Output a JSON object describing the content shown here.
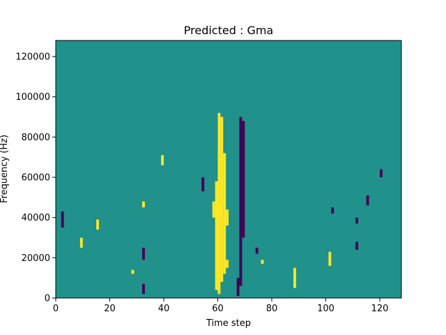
{
  "chart_data": {
    "type": "heatmap",
    "title": "Predicted : Gma",
    "xlabel": "Time step",
    "ylabel": "Frequency (Hz)",
    "xlim": [
      0,
      128
    ],
    "ylim": [
      0,
      128000
    ],
    "xticks": [
      0,
      20,
      40,
      60,
      80,
      100,
      120
    ],
    "yticks": [
      0,
      20000,
      40000,
      60000,
      80000,
      100000,
      120000
    ],
    "grid": false,
    "colormap": {
      "background": "#21918c",
      "positive": "#fde725",
      "negative": "#440154",
      "frame": "#000000"
    },
    "bin_width_x": 1,
    "bin_height_hz": 1000,
    "cells": [
      {
        "x": 60,
        "y0": 2000,
        "y1": 92000,
        "v": 1
      },
      {
        "x": 61,
        "y0": 8000,
        "y1": 90000,
        "v": 1
      },
      {
        "x": 62,
        "y0": 12000,
        "y1": 72000,
        "v": 1
      },
      {
        "x": 68,
        "y0": 6000,
        "y1": 90000,
        "v": -1
      },
      {
        "x": 69,
        "y0": 30000,
        "y1": 88000,
        "v": -1
      },
      {
        "x": 59,
        "y0": 4000,
        "y1": 58000,
        "v": 1
      },
      {
        "x": 88,
        "y0": 5000,
        "y1": 15000,
        "v": 1
      },
      {
        "x": 9,
        "y0": 25000,
        "y1": 30000,
        "v": 1
      },
      {
        "x": 2,
        "y0": 35000,
        "y1": 43000,
        "v": -1
      },
      {
        "x": 63,
        "y0": 36000,
        "y1": 44000,
        "v": 1
      },
      {
        "x": 67,
        "y0": 1000,
        "y1": 10000,
        "v": -1
      },
      {
        "x": 63,
        "y0": 15000,
        "y1": 19000,
        "v": 1
      },
      {
        "x": 60,
        "y0": 40000,
        "y1": 46000,
        "v": 1
      },
      {
        "x": 15,
        "y0": 34000,
        "y1": 39000,
        "v": 1
      },
      {
        "x": 32,
        "y0": 45000,
        "y1": 48000,
        "v": 1
      },
      {
        "x": 54,
        "y0": 53000,
        "y1": 60000,
        "v": -1
      },
      {
        "x": 39,
        "y0": 66000,
        "y1": 71000,
        "v": 1
      },
      {
        "x": 101,
        "y0": 16000,
        "y1": 23000,
        "v": 1
      },
      {
        "x": 58,
        "y0": 40000,
        "y1": 48000,
        "v": 1
      },
      {
        "x": 102,
        "y0": 42000,
        "y1": 45000,
        "v": -1
      },
      {
        "x": 74,
        "y0": 22000,
        "y1": 25000,
        "v": -1
      },
      {
        "x": 111,
        "y0": 37000,
        "y1": 40000,
        "v": -1
      },
      {
        "x": 111,
        "y0": 24000,
        "y1": 28000,
        "v": -1
      },
      {
        "x": 115,
        "y0": 46000,
        "y1": 51000,
        "v": -1
      },
      {
        "x": 120,
        "y0": 60000,
        "y1": 64000,
        "v": -1
      },
      {
        "x": 76,
        "y0": 17000,
        "y1": 19000,
        "v": 1
      },
      {
        "x": 32,
        "y0": 2000,
        "y1": 7000,
        "v": -1
      },
      {
        "x": 32,
        "y0": 19000,
        "y1": 25000,
        "v": -1
      },
      {
        "x": 28,
        "y0": 12000,
        "y1": 14000,
        "v": 1
      }
    ]
  }
}
